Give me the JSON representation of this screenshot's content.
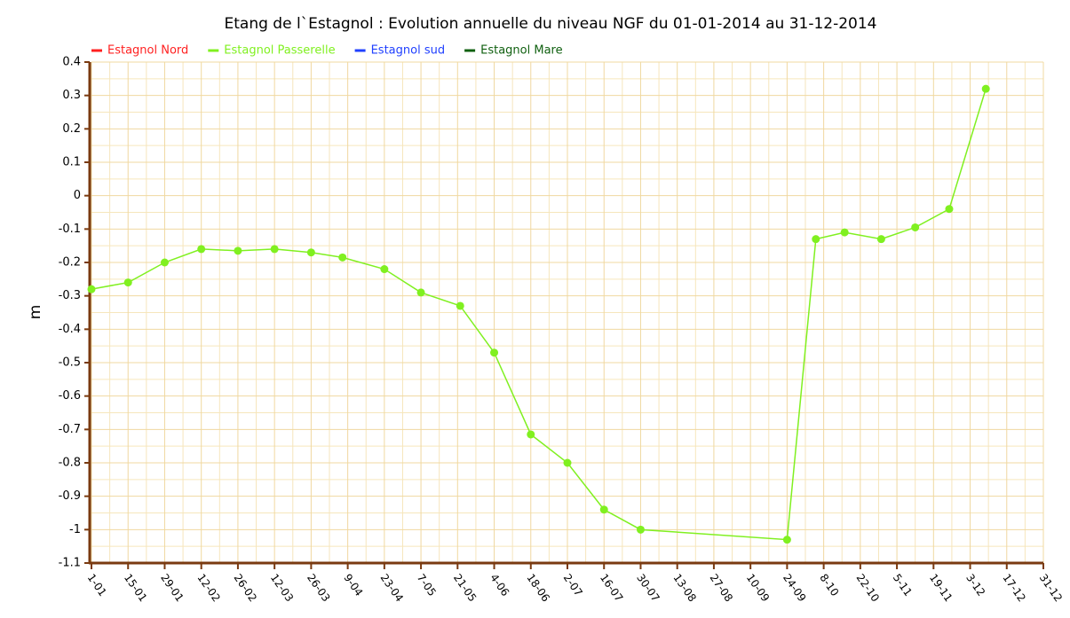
{
  "chart_data": {
    "type": "line",
    "title": "Etang de l`Estagnol : Evolution annuelle du niveau NGF du 01-01-2014 au 31-12-2014",
    "ylabel": "m",
    "x": [
      "1-01",
      "15-01",
      "29-01",
      "12-02",
      "26-02",
      "12-03",
      "26-03",
      "7-04",
      "23-04",
      "7-05",
      "22-05",
      "4-06",
      "18-06",
      "2-07",
      "16-07",
      "30-07",
      "24-09",
      "5-10",
      "16-10",
      "30-10",
      "12-11",
      "25-11",
      "9-12"
    ],
    "series": [
      {
        "name": "Estagnol Nord",
        "color": "#ff2020",
        "values": [
          null,
          null,
          null,
          null,
          null,
          null,
          null,
          null,
          null,
          null,
          null,
          null,
          null,
          null,
          null,
          null,
          null,
          null,
          null,
          null,
          null,
          null,
          null
        ]
      },
      {
        "name": "Estagnol Passerelle",
        "color": "#80f020",
        "values": [
          -0.28,
          -0.26,
          -0.2,
          -0.16,
          -0.165,
          -0.16,
          -0.17,
          -0.185,
          -0.22,
          -0.29,
          -0.33,
          -0.47,
          -0.715,
          -0.8,
          -0.94,
          -1.0,
          -1.03,
          -0.13,
          -0.11,
          -0.13,
          -0.095,
          -0.04,
          0.32
        ]
      },
      {
        "name": "Estagnol sud",
        "color": "#2040ff",
        "values": [
          null,
          null,
          null,
          null,
          null,
          null,
          null,
          null,
          null,
          null,
          null,
          null,
          null,
          null,
          null,
          null,
          null,
          null,
          null,
          null,
          null,
          null,
          null
        ]
      },
      {
        "name": "Estagnol Mare",
        "color": "#106010",
        "values": [
          null,
          null,
          null,
          null,
          null,
          null,
          null,
          null,
          null,
          null,
          null,
          null,
          null,
          null,
          null,
          null,
          null,
          null,
          null,
          null,
          null,
          null,
          null
        ]
      }
    ],
    "xlim": [
      "1-01",
      "31-12"
    ],
    "xticks": [
      "1-01",
      "15-01",
      "29-01",
      "12-02",
      "26-02",
      "12-03",
      "26-03",
      "9-04",
      "23-04",
      "7-05",
      "21-05",
      "4-06",
      "18-06",
      "2-07",
      "16-07",
      "30-07",
      "13-08",
      "27-08",
      "10-09",
      "24-09",
      "8-10",
      "22-10",
      "5-11",
      "19-11",
      "3-12",
      "17-12",
      "31-12"
    ],
    "ylim": [
      -1.1,
      0.4
    ],
    "yticks": [
      0.4,
      0.3,
      0.2,
      0.1,
      0,
      -0.1,
      -0.2,
      -0.3,
      -0.4,
      -0.5,
      -0.6,
      -0.7,
      -0.8,
      -0.9,
      -1,
      -1.1
    ],
    "grid": true,
    "legend": "top"
  }
}
